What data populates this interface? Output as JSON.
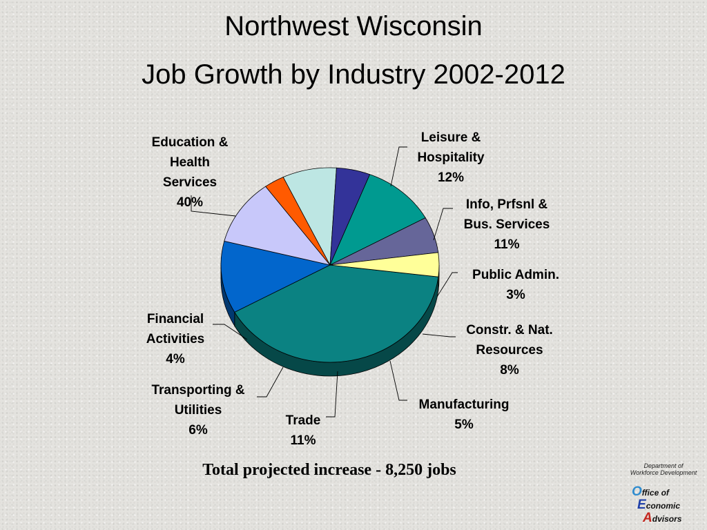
{
  "chart_data": {
    "type": "pie",
    "title": "Northwest Wisconsin",
    "subtitle": "Job Growth by Industry 2002-2012",
    "slices": [
      {
        "label": [
          "Education &",
          "Health",
          "Services",
          "40%"
        ],
        "value": 40,
        "color": "#0b8282"
      },
      {
        "label": [
          "Leisure &",
          "Hospitality",
          "12%"
        ],
        "value": 12,
        "color": "#0266cc"
      },
      {
        "label": [
          "Info, Prfsnl &",
          "Bus. Services",
          "11%"
        ],
        "value": 11,
        "color": "#c8c8fa"
      },
      {
        "label": [
          "Public Admin.",
          "3%"
        ],
        "value": 3,
        "color": "#ff5a00"
      },
      {
        "label": [
          "Constr. & Nat.",
          "Resources",
          "8%"
        ],
        "value": 8,
        "color": "#bde6e3"
      },
      {
        "label": [
          "Manufacturing",
          "5%"
        ],
        "value": 5,
        "color": "#333399"
      },
      {
        "label": [
          "Trade",
          "11%"
        ],
        "value": 11,
        "color": "#009a90"
      },
      {
        "label": [
          "Transporting &",
          "Utilities",
          "6%"
        ],
        "value": 6,
        "color": "#666699"
      },
      {
        "label": [
          "Financial",
          "Activities",
          "4%"
        ],
        "value": 4,
        "color": "#ffff99"
      }
    ],
    "note": "Total projected increase - 8,250 jobs"
  },
  "logo": {
    "department": [
      "Department of",
      "Workforce Development"
    ],
    "lines": [
      {
        "initial": "O",
        "rest": "ffice of"
      },
      {
        "initial": "E",
        "rest": "conomic"
      },
      {
        "initial": "A",
        "rest": "dvisors"
      }
    ]
  }
}
